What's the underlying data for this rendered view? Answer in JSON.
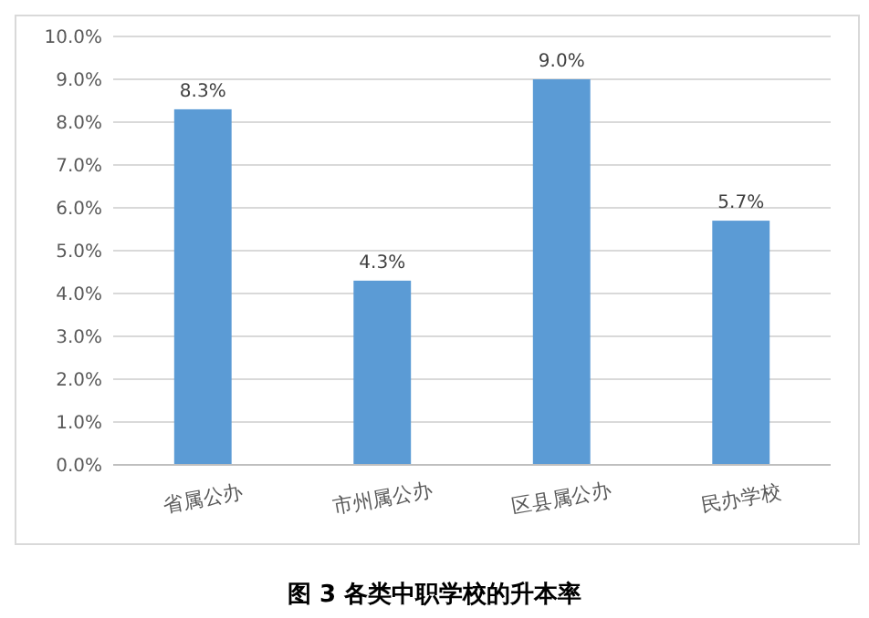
{
  "chart_data": {
    "type": "bar",
    "title": "图 3  各类中职学校的升本率",
    "categories": [
      "省属公办",
      "市州属公办",
      "区县属公办",
      "民办学校"
    ],
    "values": [
      8.3,
      4.3,
      9.0,
      5.7
    ],
    "value_labels": [
      "8.3%",
      "4.3%",
      "9.0%",
      "5.7%"
    ],
    "color": "#5b9bd5",
    "ylim": [
      0,
      10
    ],
    "yticks": [
      {
        "value": 0,
        "label": "0.0%"
      },
      {
        "value": 1,
        "label": "1.0%"
      },
      {
        "value": 2,
        "label": "2.0%"
      },
      {
        "value": 3,
        "label": "3.0%"
      },
      {
        "value": 4,
        "label": "4.0%"
      },
      {
        "value": 5,
        "label": "5.0%"
      },
      {
        "value": 6,
        "label": "6.0%"
      },
      {
        "value": 7,
        "label": "7.0%"
      },
      {
        "value": 8,
        "label": "8.0%"
      },
      {
        "value": 9,
        "label": "9.0%"
      },
      {
        "value": 10,
        "label": "10.0%"
      }
    ],
    "grid": "y"
  }
}
